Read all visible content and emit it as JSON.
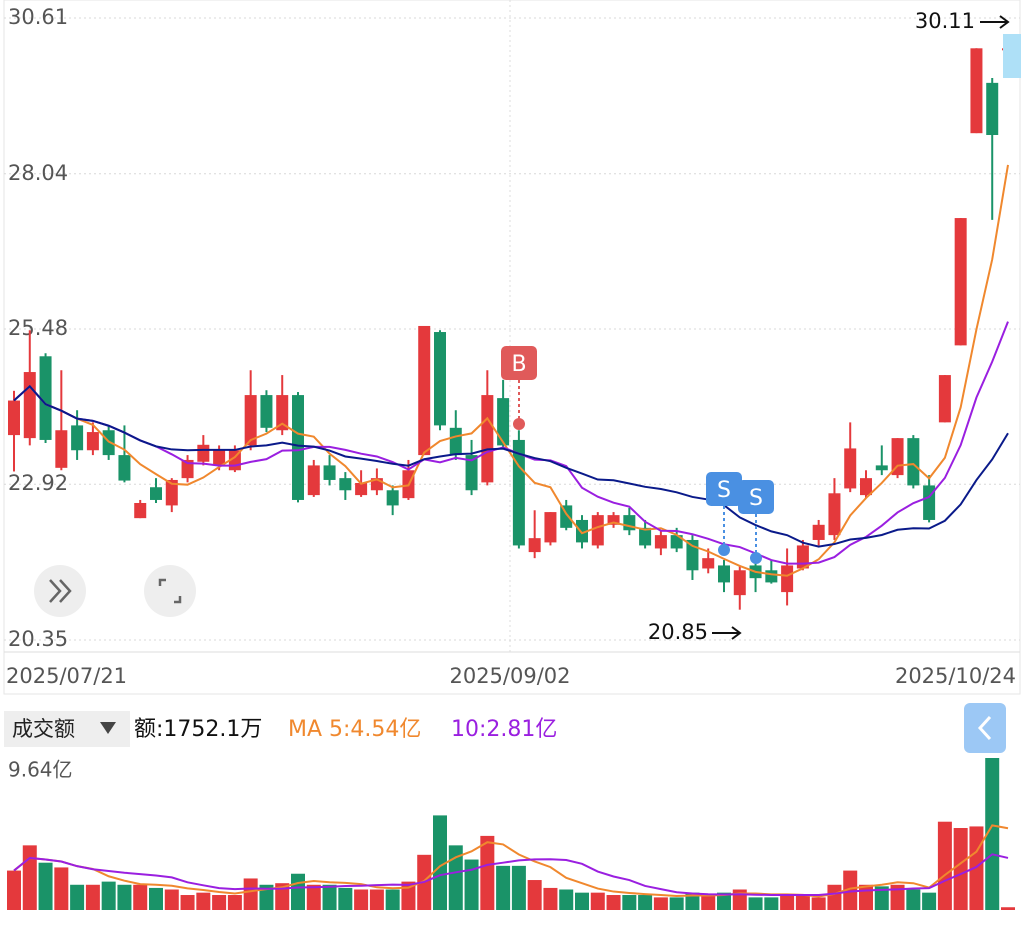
{
  "chart_data": {
    "type": "candlestick",
    "ylim": [
      20.35,
      30.61
    ],
    "yticks": [
      30.61,
      28.04,
      25.48,
      22.92,
      20.35
    ],
    "grid": true,
    "date_labels": [
      "2025/07/21",
      "2025/09/02",
      "2025/10/24"
    ],
    "up_color": "#e4393c",
    "down_color": "#1a9368",
    "ma_colors": [
      "#f0882e",
      "#9a1fe0",
      "#0a1a8a"
    ],
    "candles": {
      "open": [
        23.73,
        23.68,
        25.03,
        23.19,
        23.89,
        23.48,
        23.81,
        23.4,
        22.36,
        22.87,
        22.57,
        23.02,
        23.29,
        23.23,
        23.15,
        23.56,
        24.39,
        23.81,
        24.39,
        22.74,
        23.23,
        23.02,
        22.74,
        22.82,
        22.82,
        22.69,
        23.4,
        25.43,
        23.85,
        23.4,
        22.95,
        24.34,
        23.65,
        21.8,
        21.96,
        22.57,
        22.33,
        21.91,
        22.25,
        22.41,
        22.2,
        21.86,
        22.08,
        22.0,
        21.53,
        21.58,
        21.09,
        21.58,
        21.5,
        21.14,
        21.53,
        22.0,
        22.08,
        22.85,
        22.74,
        23.23,
        23.07,
        23.68,
        22.9,
        23.94,
        25.21,
        28.71,
        29.54,
        30.09
      ],
      "high": [
        24.46,
        25.46,
        25.08,
        24.8,
        24.14,
        23.94,
        23.89,
        23.89,
        22.66,
        23.02,
        23.02,
        23.4,
        23.73,
        23.56,
        23.56,
        24.8,
        24.47,
        24.72,
        24.44,
        23.32,
        23.4,
        23.12,
        23.15,
        23.18,
        22.9,
        23.32,
        25.53,
        25.46,
        24.14,
        23.65,
        24.8,
        24.64,
        23.81,
        22.49,
        22.46,
        22.66,
        22.41,
        22.46,
        22.46,
        22.53,
        22.33,
        22.16,
        22.2,
        22.08,
        21.86,
        21.67,
        21.58,
        21.67,
        21.67,
        21.86,
        22.0,
        22.33,
        23.02,
        23.94,
        23.15,
        23.56,
        23.68,
        23.73,
        23.07,
        24.72,
        27.31,
        30.11,
        29.62,
        30.11
      ],
      "low": [
        23.13,
        23.56,
        23.6,
        23.15,
        23.32,
        23.4,
        23.32,
        22.95,
        22.36,
        22.61,
        22.46,
        22.95,
        23.23,
        23.15,
        23.12,
        23.48,
        23.78,
        23.73,
        22.62,
        22.71,
        22.9,
        22.66,
        22.71,
        22.74,
        22.41,
        22.66,
        23.4,
        23.81,
        23.32,
        22.74,
        22.9,
        23.51,
        21.86,
        21.7,
        21.91,
        22.16,
        21.86,
        21.86,
        22.2,
        22.08,
        21.86,
        21.75,
        21.8,
        21.34,
        21.45,
        21.14,
        20.85,
        21.14,
        21.28,
        20.92,
        21.5,
        21.91,
        22.0,
        22.79,
        22.69,
        23.07,
        23.02,
        22.85,
        22.29,
        23.94,
        25.21,
        28.71,
        27.28,
        30.05
      ],
      "close": [
        24.3,
        24.77,
        23.65,
        23.81,
        23.48,
        23.78,
        23.4,
        22.98,
        22.61,
        22.66,
        22.99,
        23.32,
        23.57,
        23.48,
        23.48,
        24.39,
        23.85,
        24.39,
        22.66,
        23.23,
        22.99,
        22.82,
        22.94,
        23.02,
        22.57,
        23.15,
        25.53,
        23.89,
        23.4,
        22.82,
        24.39,
        23.56,
        21.91,
        22.03,
        22.46,
        22.2,
        21.96,
        22.41,
        22.41,
        22.16,
        21.91,
        22.08,
        21.86,
        21.5,
        21.7,
        21.3,
        21.5,
        21.37,
        21.3,
        21.58,
        21.91,
        22.25,
        22.77,
        23.51,
        23.02,
        23.15,
        23.68,
        22.9,
        22.33,
        24.72,
        27.31,
        30.11,
        28.68,
        30.11
      ]
    },
    "signals": [
      "B",
      "S",
      "S"
    ],
    "volume": {
      "selector": "成交额",
      "amount_label": "额:1752.1万",
      "ma_legend": [
        "MA 5:4.54亿",
        "10:2.81亿"
      ],
      "max": {
        "value": 9.64,
        "label": "9.64亿"
      },
      "values": [
        2.5,
        4.1,
        3.0,
        2.7,
        1.6,
        1.6,
        1.8,
        1.6,
        1.6,
        1.4,
        1.3,
        0.95,
        1.1,
        0.95,
        0.95,
        2.0,
        1.6,
        1.7,
        2.3,
        1.6,
        1.6,
        1.4,
        1.3,
        1.3,
        1.3,
        1.8,
        3.5,
        6.0,
        4.1,
        3.2,
        4.7,
        2.8,
        2.8,
        1.9,
        1.4,
        1.3,
        1.1,
        1.1,
        0.95,
        0.95,
        0.95,
        0.8,
        0.8,
        1.1,
        0.95,
        1.1,
        1.3,
        0.8,
        0.8,
        0.95,
        0.95,
        0.8,
        1.6,
        2.5,
        1.6,
        1.5,
        1.6,
        1.3,
        1.1,
        5.6,
        5.2,
        5.3,
        9.64,
        0.17521
      ]
    }
  }
}
